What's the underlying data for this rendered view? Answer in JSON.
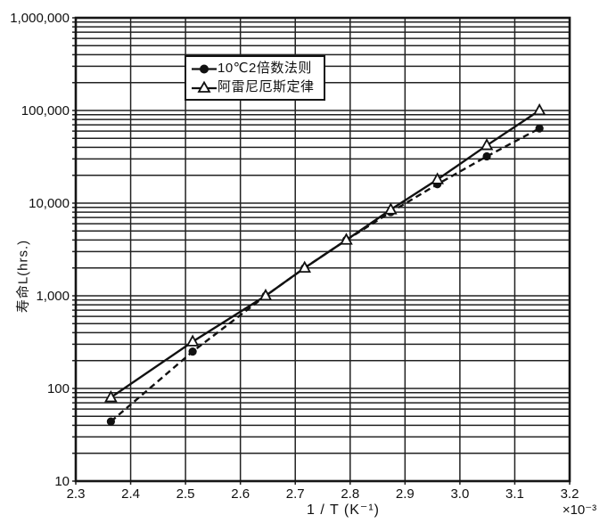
{
  "figure": {
    "background_color": "#ffffff",
    "ink_color": "#111111"
  },
  "chart_data": {
    "type": "line",
    "title": "",
    "xlabel": "1 / T (K⁻¹)",
    "x_multiplier": "×10⁻³",
    "ylabel": "寿命L(hrs.)",
    "x_scale": "linear",
    "y_scale": "log10",
    "xlim": [
      2.3,
      3.2
    ],
    "ylim": [
      10,
      1000000
    ],
    "x_ticks": [
      2.3,
      2.4,
      2.5,
      2.6,
      2.7,
      2.8,
      2.9,
      3.0,
      3.1,
      3.2
    ],
    "x_tick_labels": [
      "2.3",
      "2.4",
      "2.5",
      "2.6",
      "2.7",
      "2.8",
      "2.9",
      "3.0",
      "3.1",
      "3.2"
    ],
    "y_ticks": [
      10,
      100,
      1000,
      10000,
      100000,
      1000000
    ],
    "y_tick_labels": [
      "10",
      "100",
      "1,000",
      "10,000",
      "100,000",
      "1,000,000"
    ],
    "grid": {
      "vertical_major": true,
      "horizontal_log_minor": true,
      "color": "#222222"
    },
    "legend_position": "top-center-inside",
    "x": [
      2.364,
      2.513,
      2.646,
      2.717,
      2.793,
      2.874,
      2.959,
      3.049,
      3.145
    ],
    "series": [
      {
        "name": "10℃2倍数法则",
        "marker": "filled-circle",
        "line_style": "dashed",
        "color": "#111111",
        "values": [
          44,
          250,
          1000,
          2000,
          4000,
          8000,
          16000,
          32000,
          64000
        ]
      },
      {
        "name": "阿雷尼厄斯定律",
        "marker": "open-triangle",
        "line_style": "solid",
        "color": "#111111",
        "values": [
          80,
          320,
          1000,
          2000,
          4000,
          8500,
          18000,
          42000,
          100000
        ]
      }
    ]
  }
}
